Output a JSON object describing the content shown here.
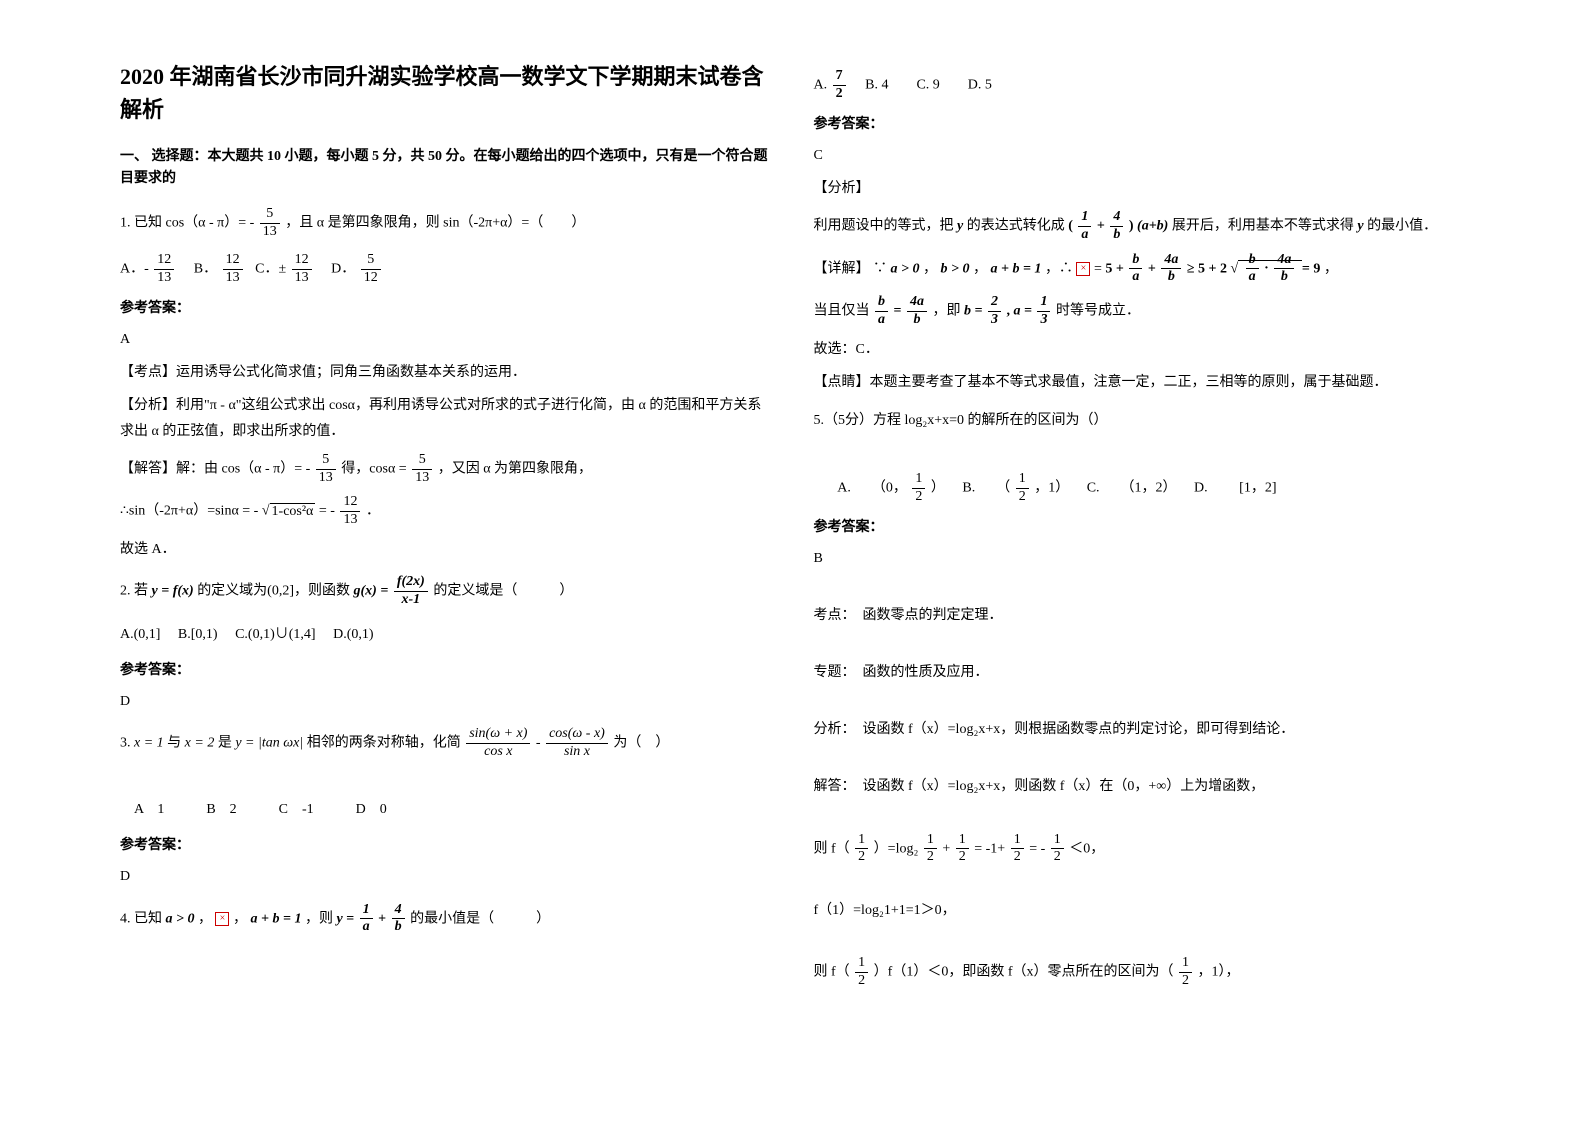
{
  "title": "2020 年湖南省长沙市同升湖实验学校高一数学文下学期期末试卷含解析",
  "section1_header": "一、 选择题：本大题共 10 小题，每小题 5 分，共 50 分。在每小题给出的四个选项中，只有是一个符合题目要求的",
  "q1": {
    "text_pre": "1. 已知 cos（α - π）= -",
    "frac_num": "5",
    "frac_den": "13",
    "text_post": "，且 α 是第四象限角，则 sin（-2π+α）=（　　）",
    "opt_a": "A．-",
    "opt_a_num": "12",
    "opt_a_den": "13",
    "opt_b": "B．",
    "opt_b_num": "12",
    "opt_b_den": "13",
    "opt_c": "C．±",
    "opt_c_num": "12",
    "opt_c_den": "13",
    "opt_d": "D．",
    "opt_d_num": "5",
    "opt_d_den": "12",
    "answer_label": "参考答案：",
    "answer": "A",
    "kaodian": "【考点】运用诱导公式化简求值；同角三角函数基本关系的运用．",
    "fenxi": "【分析】利用\"π - α\"这组公式求出 cosα，再利用诱导公式对所求的式子进行化简，由 α 的范围和平方关系求出 α 的正弦值，即求出所求的值．",
    "jieda_pre": "【解答】解：由 cos（α - π）= -",
    "jieda_num1": "5",
    "jieda_den1": "13",
    "jieda_mid": " 得，cosα =",
    "jieda_num2": "5",
    "jieda_den2": "13",
    "jieda_post": "，又因 α 为第四象限角，",
    "jieda2_pre": "∴sin（-2π+α）=sinα = -",
    "jieda2_sqrt": "1-cos²α",
    "jieda2_mid": " = -",
    "jieda2_num": "12",
    "jieda2_den": "13",
    "jieda2_post": "．",
    "conclusion": "故选 A．"
  },
  "q2": {
    "text_pre": "2. 若",
    "expr1": "y = f(x)",
    "text_mid": " 的定义域为(0,2]，则函数",
    "expr2_lhs": "g(x) =",
    "expr2_num": "f(2x)",
    "expr2_den": "x-1",
    "text_post": " 的定义域是（　　　）",
    "options": "A.(0,1]　 B.[0,1)　 C.(0,1)∪(1,4]　 D.(0,1)",
    "answer_label": "参考答案：",
    "answer": "D"
  },
  "q3": {
    "text_pre": "3. ",
    "expr1": "x = 1",
    "text_mid1": " 与 ",
    "expr2": "x = 2",
    "text_mid2": " 是 ",
    "expr3": "y = |tan ωx|",
    "text_mid3": " 相邻的两条对称轴，化简 ",
    "frac1_num": "sin(ω + x)",
    "frac1_den": "cos x",
    "text_minus": " - ",
    "frac2_num": "cos(ω - x)",
    "frac2_den": "sin x",
    "text_post": " 为（　）",
    "options": "　A　1　　　B　2　　　C　-1　　　D　0",
    "answer_label": "参考答案：",
    "answer": " D"
  },
  "q4": {
    "text_pre": "4. 已知",
    "expr1": "a > 0",
    "text_mid1": "，",
    "text_mid2": "，",
    "expr2": "a + b = 1",
    "text_mid3": "，则",
    "expr3_lhs": "y =",
    "expr3_f1_num": "1",
    "expr3_f1_den": "a",
    "expr3_plus": "+",
    "expr3_f2_num": "4",
    "expr3_f2_den": "b",
    "text_post": " 的最小值是（　　　）",
    "opt_a": "A. ",
    "opt_a_num": "7",
    "opt_a_den": "2",
    "opt_b": "　B. 4　　C. 9　　D. 5",
    "answer_label": "参考答案：",
    "answer": "C",
    "fenxi_label": "【分析】",
    "fenxi_pre": "利用题设中的等式，把",
    "fenxi_y": "y",
    "fenxi_mid": " 的表达式转化成",
    "fenxi_paren_f1_num": "1",
    "fenxi_paren_f1_den": "a",
    "fenxi_paren_plus": "+",
    "fenxi_paren_f2_num": "4",
    "fenxi_paren_f2_den": "b",
    "fenxi_paren_mult": "(a+b)",
    "fenxi_post": " 展开后，利用基本不等式求得",
    "fenxi_y2": "y",
    "fenxi_end": " 的最小值．",
    "xiangjie_label": "【详解】",
    "xiangjie_pre": "∵",
    "xiangjie_a": "a > 0",
    "xiangjie_c1": "，",
    "xiangjie_b": "b > 0",
    "xiangjie_c2": "，",
    "xiangjie_ab": "a + b = 1",
    "xiangjie_c3": "，∴",
    "xiangjie_eq": " =",
    "xiangjie_rhs_5": "5 +",
    "xiangjie_rhs_f1_num": "b",
    "xiangjie_rhs_f1_den": "a",
    "xiangjie_rhs_plus": "+",
    "xiangjie_rhs_f2_num": "4a",
    "xiangjie_rhs_f2_den": "b",
    "xiangjie_rhs_ge": "≥ 5 + 2",
    "xiangjie_rhs_sqrt_f1_num": "b",
    "xiangjie_rhs_sqrt_f1_den": "a",
    "xiangjie_rhs_sqrt_dot": "·",
    "xiangjie_rhs_sqrt_f2_num": "4a",
    "xiangjie_rhs_sqrt_f2_den": "b",
    "xiangjie_rhs_9": "= 9",
    "xiangjie_post": "，",
    "dang_pre": "当且仅当",
    "dang_f1_num": "b",
    "dang_f1_den": "a",
    "dang_eq": "=",
    "dang_f2_num": "4a",
    "dang_f2_den": "b",
    "dang_mid": "，即",
    "dang_b_lhs": "b =",
    "dang_b_num": "2",
    "dang_b_den": "3",
    "dang_comma": ", ",
    "dang_a_lhs": "a =",
    "dang_a_num": "1",
    "dang_a_den": "3",
    "dang_post": " 时等号成立．",
    "conclusion": "故选：C．",
    "dianjing": "【点睛】本题主要考查了基本不等式求最值，注意一定，二正，三相等的原则，属于基础题．"
  },
  "q5": {
    "text": "5.（5分）方程 log₂x+x=0 的解所在的区间为（）",
    "opt_a": "A.　　（0，",
    "opt_a_num": "1",
    "opt_a_den": "2",
    "opt_a_post": "）",
    "opt_b": "B.　　（",
    "opt_b_num": "1",
    "opt_b_den": "2",
    "opt_b_post": "，1）",
    "opt_c": "C.　　（1，2）",
    "opt_d": "D.　　 [1，2]",
    "answer_label": "参考答案：",
    "answer": "B",
    "kaodian": "考点：　函数零点的判定定理．",
    "zhuanti": "专题：　函数的性质及应用．",
    "fenxi": "分析：　设函数 f（x）=log₂x+x，则根据函数零点的判定讨论，即可得到结论．",
    "jieda": "解答：　设函数 f（x）=log₂x+x，则函数 f（x）在（0，+∞）上为增函数，",
    "jieda2_pre": "则 f（",
    "jieda2_f1_num": "1",
    "jieda2_f1_den": "2",
    "jieda2_mid": "）=log₂",
    "jieda2_f2_num": "1",
    "jieda2_f2_den": "2",
    "jieda2_plus": "+",
    "jieda2_f3_num": "1",
    "jieda2_f3_den": "2",
    "jieda2_eq": "= -1+",
    "jieda2_f4_num": "1",
    "jieda2_f4_den": "2",
    "jieda2_eq2": "= -",
    "jieda2_f5_num": "1",
    "jieda2_f5_den": "2",
    "jieda2_post": "＜0，",
    "jieda3": "f（1）=log₂1+1=1＞0，",
    "jieda4_pre": "则 f（",
    "jieda4_f1_num": "1",
    "jieda4_f1_den": "2",
    "jieda4_mid": "）f（1）＜0，即函数 f（x）零点所在的区间为（",
    "jieda4_f2_num": "1",
    "jieda4_f2_den": "2",
    "jieda4_post": "，1），"
  }
}
